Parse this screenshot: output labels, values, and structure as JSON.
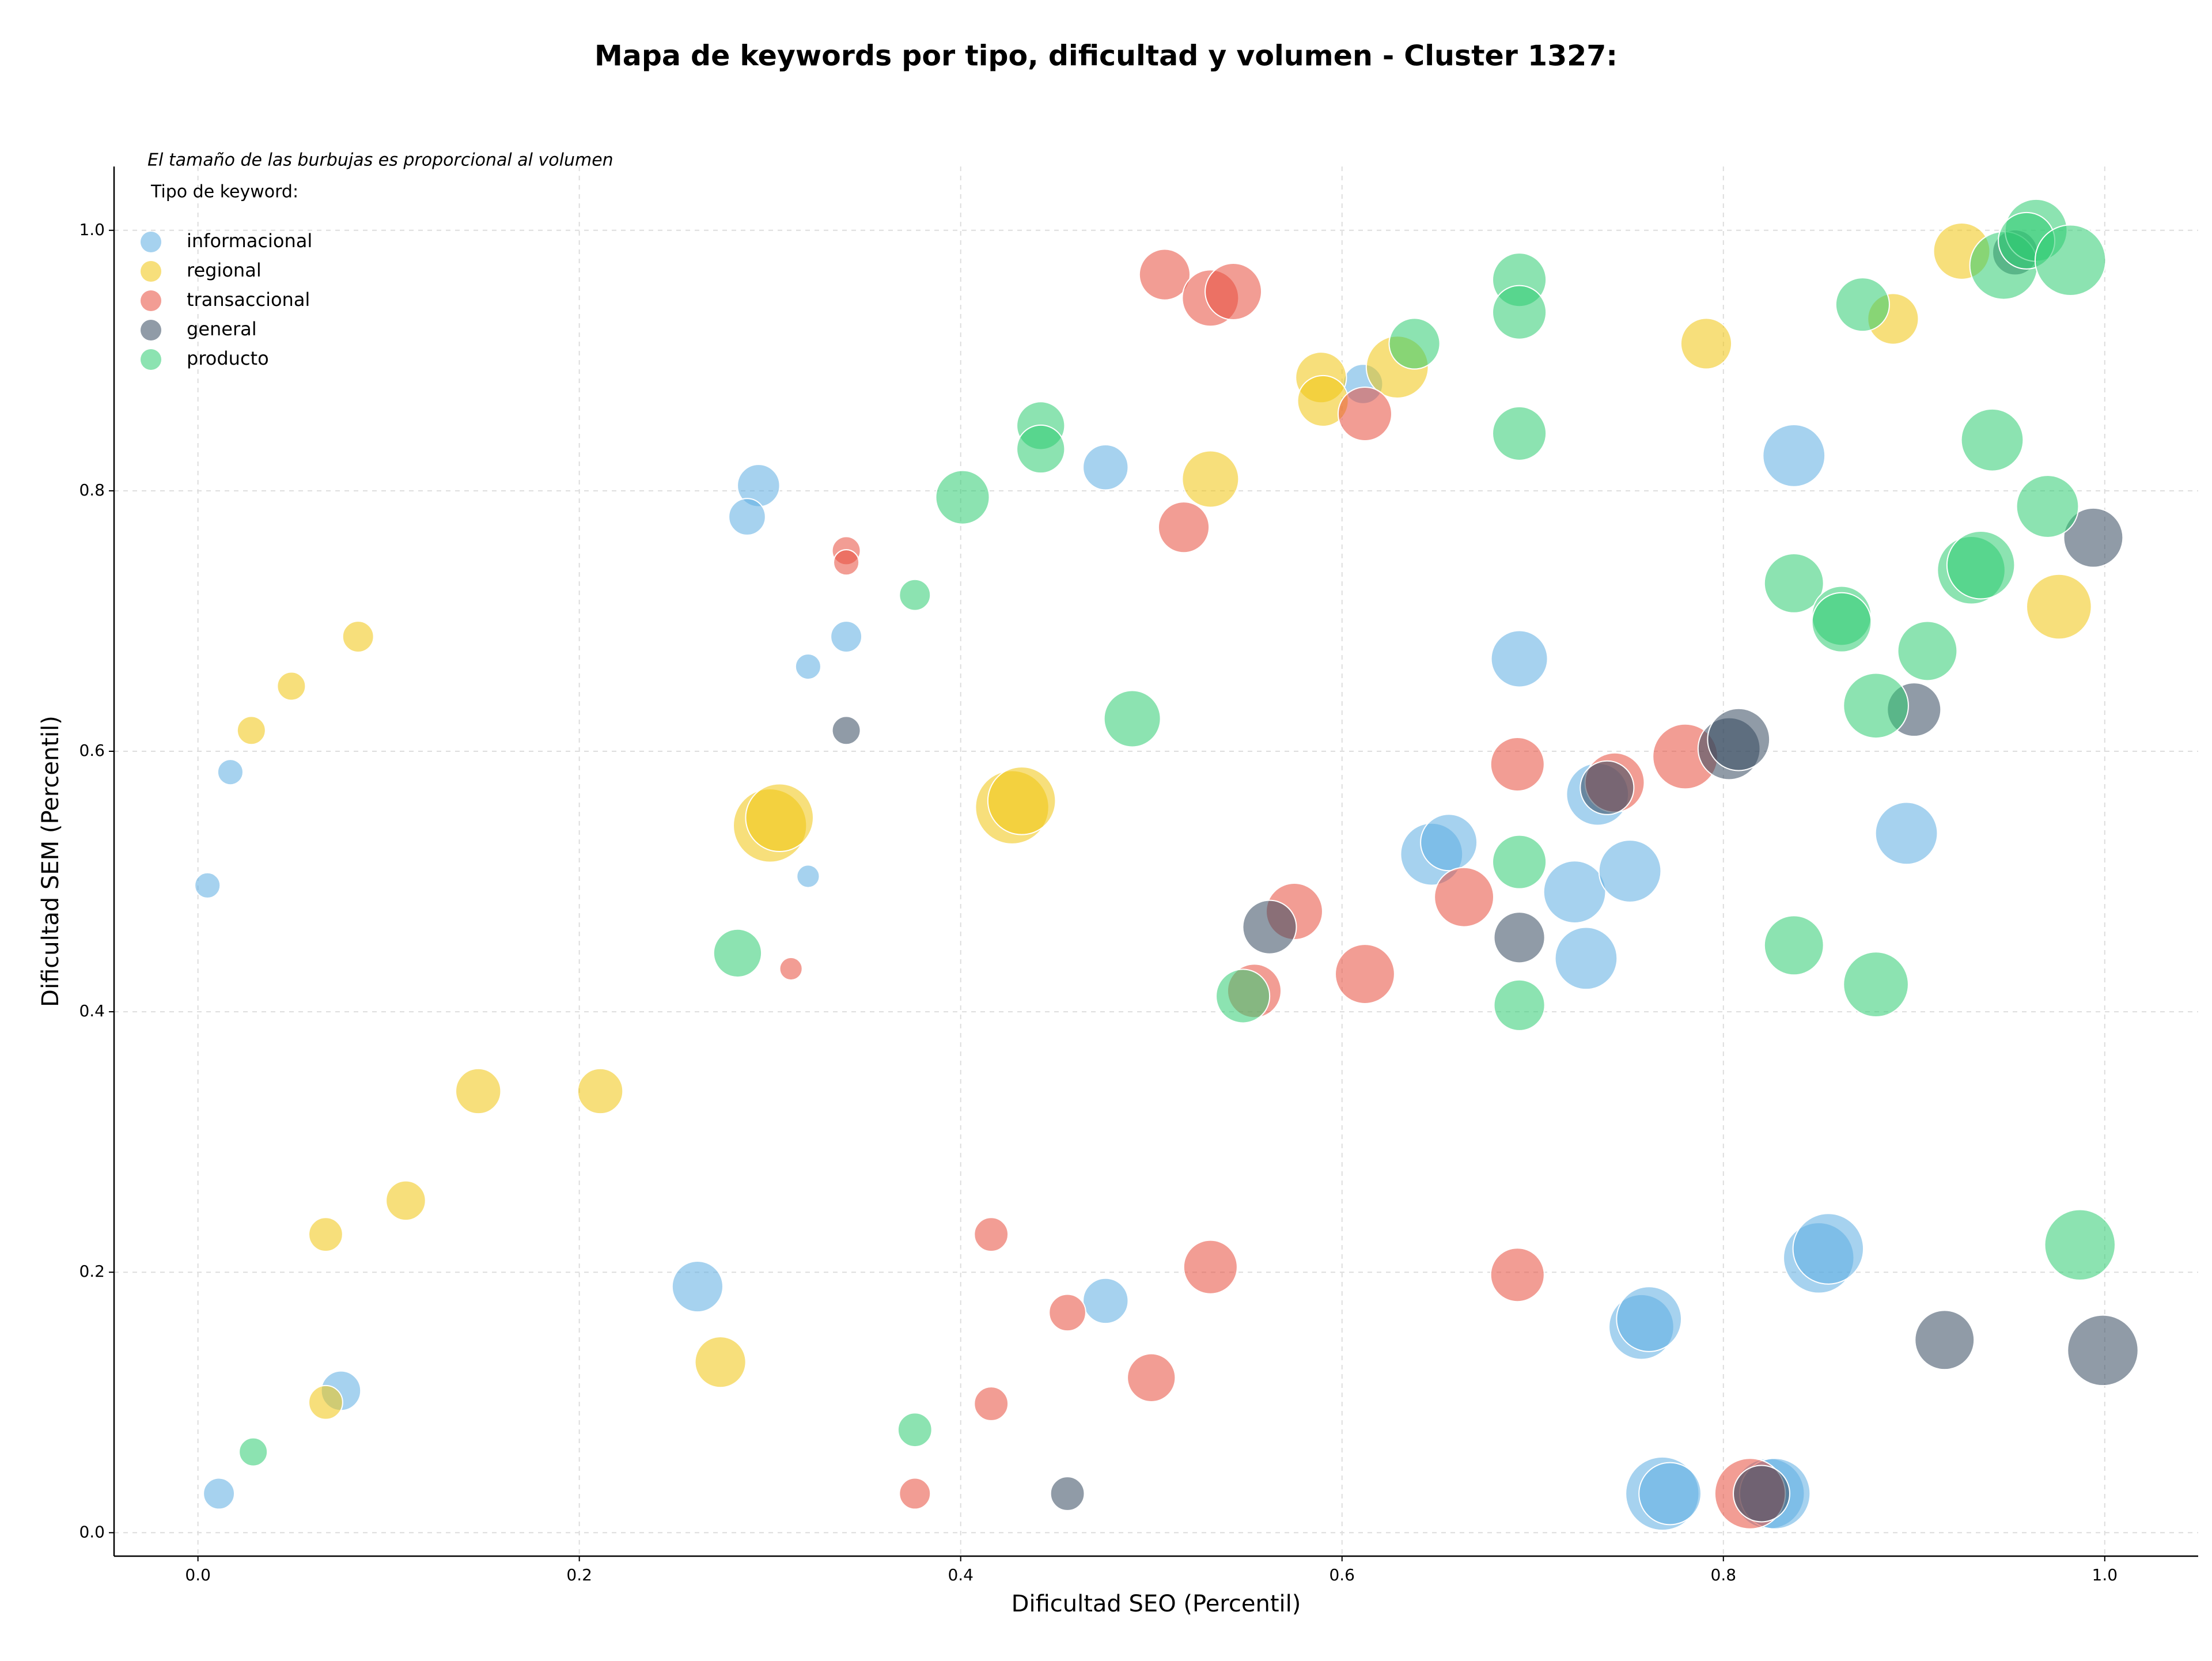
{
  "chart_data": {
    "type": "scatter",
    "title": "Mapa de keywords por tipo, dificultad y volumen - Cluster 1327:",
    "note": "El tamaño de las burbujas es proporcional al volumen",
    "legend_title": "Tipo de keyword:",
    "legend": "upper left",
    "x_label": "Dificultad SEO (Percentil)",
    "y_label": "Dificultad SEM (Percentil)",
    "xlim": [
      -0.044,
      1.049
    ],
    "ylim": [
      -0.018,
      1.049
    ],
    "xticks": [
      {
        "value": 0,
        "label": "0.0"
      },
      0.2,
      0.4,
      0.6,
      0.8,
      {
        "value": 1,
        "label": "1.0"
      }
    ],
    "yticks": [
      {
        "value": 0,
        "label": "0.0"
      },
      0.2,
      0.4,
      0.6,
      0.8,
      {
        "value": 1,
        "label": "1.0"
      }
    ],
    "grid": true,
    "series": [
      {
        "name": "informacional",
        "color": "#5DADE2",
        "x": [
          0.294,
          0.288,
          0.476,
          0.32,
          0.34,
          0.017,
          0.005,
          0.32,
          0.262,
          0.476,
          0.075,
          0.011,
          0.837,
          0.693,
          0.896,
          0.647,
          0.656,
          0.722,
          0.751,
          0.728,
          0.734,
          0.85,
          0.855,
          0.757,
          0.761,
          0.768,
          0.772,
          0.824,
          0.827,
          0.611
        ],
        "values": [
          0.804,
          0.78,
          0.818,
          0.665,
          0.688,
          0.584,
          0.497,
          0.504,
          0.189,
          0.178,
          0.109,
          0.03,
          0.827,
          0.671,
          0.537,
          0.521,
          0.53,
          0.492,
          0.508,
          0.441,
          0.567,
          0.211,
          0.218,
          0.158,
          0.164,
          0.03,
          0.03,
          0.03,
          0.03,
          0.882
        ],
        "sizes": [
          15,
          13,
          16,
          9,
          11,
          9,
          9,
          8,
          18,
          16,
          14,
          11,
          22,
          20,
          22,
          22,
          20,
          22,
          22,
          22,
          22,
          25,
          25,
          23,
          23,
          26,
          22,
          25,
          25,
          14
        ]
      },
      {
        "name": "regional",
        "color": "#F1C40F",
        "x": [
          0.084,
          0.049,
          0.028,
          0.3,
          0.305,
          0.427,
          0.432,
          0.531,
          0.589,
          0.59,
          0.629,
          0.791,
          0.925,
          0.889,
          0.976,
          0.147,
          0.211,
          0.109,
          0.067,
          0.274,
          0.067
        ],
        "values": [
          0.688,
          0.65,
          0.616,
          0.543,
          0.549,
          0.557,
          0.562,
          0.809,
          0.887,
          0.869,
          0.895,
          0.913,
          0.984,
          0.932,
          0.711,
          0.339,
          0.339,
          0.255,
          0.229,
          0.131,
          0.1
        ],
        "sizes": [
          11,
          10,
          10,
          26,
          24,
          26,
          24,
          20,
          18,
          18,
          22,
          18,
          20,
          18,
          23,
          16,
          16,
          14,
          12,
          18,
          12
        ]
      },
      {
        "name": "transaccional",
        "color": "#E74C3C",
        "x": [
          0.507,
          0.531,
          0.543,
          0.34,
          0.34,
          0.517,
          0.612,
          0.311,
          0.575,
          0.554,
          0.612,
          0.664,
          0.692,
          0.743,
          0.78,
          0.416,
          0.531,
          0.456,
          0.5,
          0.416,
          0.376,
          0.692,
          0.814
        ],
        "values": [
          0.966,
          0.948,
          0.953,
          0.754,
          0.745,
          0.772,
          0.859,
          0.433,
          0.477,
          0.416,
          0.429,
          0.488,
          0.59,
          0.576,
          0.596,
          0.229,
          0.204,
          0.169,
          0.119,
          0.099,
          0.03,
          0.198,
          0.03
        ],
        "sizes": [
          18,
          20,
          20,
          10,
          9,
          18,
          19,
          8,
          20,
          19,
          21,
          21,
          19,
          21,
          23,
          12,
          19,
          13,
          17,
          12,
          11,
          19,
          25
        ]
      },
      {
        "name": "general",
        "color": "#34495E",
        "x": [
          0.34,
          0.562,
          0.693,
          0.739,
          0.803,
          0.808,
          0.9,
          0.994,
          0.916,
          0.999,
          0.456,
          0.82,
          0.953
        ],
        "values": [
          0.616,
          0.465,
          0.457,
          0.572,
          0.602,
          0.609,
          0.632,
          0.764,
          0.148,
          0.14,
          0.03,
          0.03,
          0.983
        ],
        "sizes": [
          10,
          19,
          18,
          19,
          22,
          22,
          19,
          21,
          21,
          25,
          12,
          20,
          16
        ]
      },
      {
        "name": "producto",
        "color": "#2ECC71",
        "x": [
          0.376,
          0.401,
          0.442,
          0.442,
          0.638,
          0.693,
          0.693,
          0.693,
          0.49,
          0.283,
          0.693,
          0.548,
          0.693,
          0.873,
          0.941,
          0.97,
          0.837,
          0.862,
          0.862,
          0.907,
          0.88,
          0.93,
          0.935,
          0.837,
          0.88,
          0.987,
          0.029,
          0.376,
          0.947,
          0.964,
          0.959,
          0.982
        ],
        "values": [
          0.72,
          0.795,
          0.85,
          0.832,
          0.913,
          0.962,
          0.937,
          0.844,
          0.625,
          0.445,
          0.515,
          0.412,
          0.405,
          0.943,
          0.839,
          0.788,
          0.729,
          0.704,
          0.699,
          0.677,
          0.635,
          0.739,
          0.743,
          0.451,
          0.421,
          0.221,
          0.062,
          0.079,
          0.973,
          1.0,
          0.992,
          0.977
        ],
        "sizes": [
          11,
          19,
          17,
          17,
          18,
          19,
          19,
          19,
          20,
          17,
          19,
          19,
          18,
          19,
          22,
          22,
          21,
          21,
          21,
          21,
          23,
          24,
          24,
          21,
          23,
          25,
          10,
          12,
          24,
          22,
          20,
          25
        ]
      }
    ]
  }
}
